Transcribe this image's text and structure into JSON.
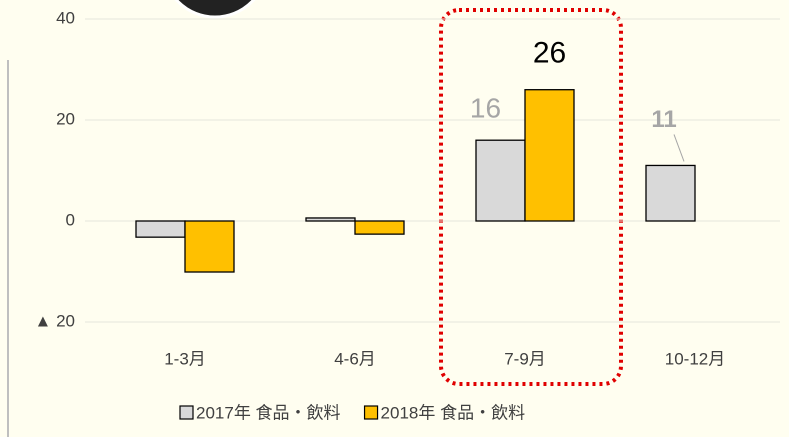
{
  "chart_data": {
    "type": "bar",
    "categories": [
      "1-3月",
      "4-6月",
      "7-9月",
      "10-12月"
    ],
    "series": [
      {
        "name": "2017年 食品・飲料",
        "color": "#d9d9d9",
        "label_color": "#a6a6a6",
        "values": [
          -3.2,
          0.6,
          16,
          11
        ],
        "value_labels": [
          null,
          null,
          "16",
          "11"
        ]
      },
      {
        "name": "2018年 食品・飲料",
        "color": "#ffc000",
        "label_color": "#000000",
        "values": [
          -10.1,
          -2.6,
          26,
          null
        ],
        "value_labels": [
          null,
          null,
          "26",
          null
        ]
      }
    ],
    "ylim": [
      -20,
      40
    ],
    "yticks": [
      {
        "value": -20,
        "label": "▲ 20"
      },
      0,
      20,
      40
    ],
    "grid": true,
    "legend": "bottom"
  }
}
